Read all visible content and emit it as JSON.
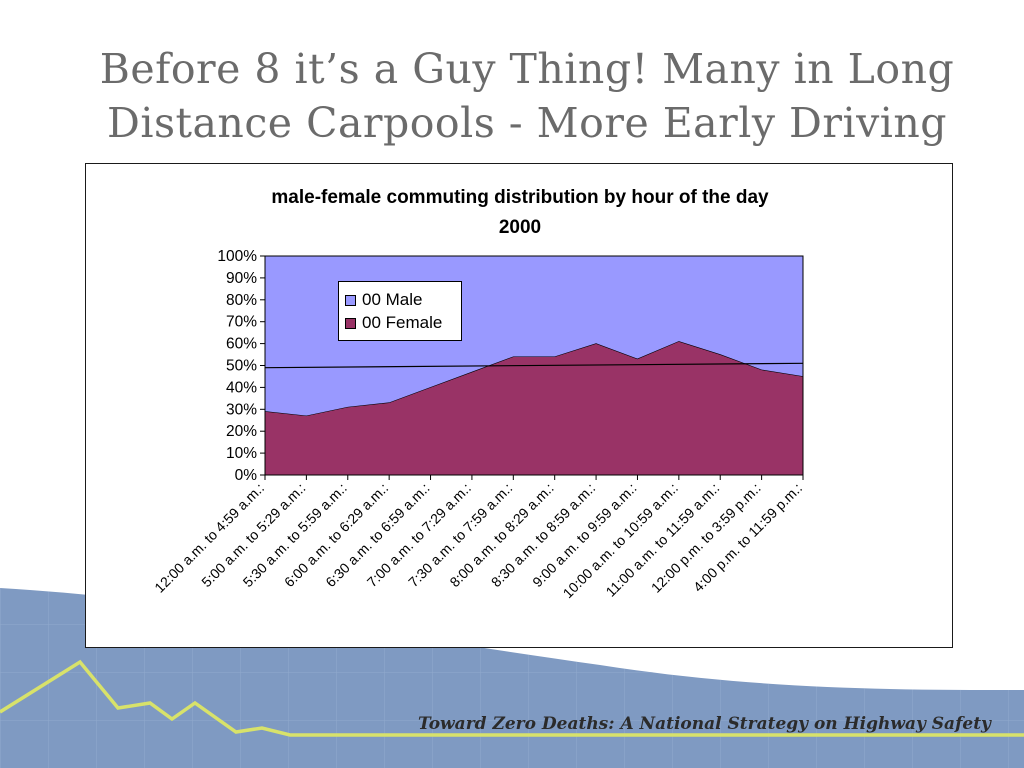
{
  "slide": {
    "title_line1": "Before 8 it’s a Guy Thing! Many in Long",
    "title_line2": "Distance Carpools - More Early Driving",
    "footer_tagline": "Toward Zero Deaths: A National Strategy on Highway Safety"
  },
  "colors": {
    "male": "#9999ff",
    "female": "#993366",
    "title_text": "#6b6b6b",
    "background_band": "#7f9ac2",
    "mountain_line": "#d8e26a"
  },
  "chart_data": {
    "type": "area",
    "stacked": true,
    "percent": true,
    "title_line1": "male-female commuting distribution by hour of the day",
    "title_line2": "2000",
    "categories": [
      "12:00 a.m. to 4:59 a.m.:",
      "5:00 a.m. to 5:29 a.m.:",
      "5:30 a.m. to 5:59 a.m.:",
      "6:00 a.m. to 6:29 a.m.:",
      "6:30 a.m. to 6:59 a.m.:",
      "7:00 a.m. to 7:29 a.m.:",
      "7:30 a.m. to 7:59 a.m.:",
      "8:00 a.m. to 8:29 a.m.:",
      "8:30 a.m. to 8:59 a.m.:",
      "9:00 a.m. to 9:59 a.m.:",
      "10:00 a.m. to 10:59 a.m.:",
      "11:00 a.m. to 11:59 a.m.:",
      "12:00 p.m. to 3:59 p.m.:",
      "4:00 p.m. to 11:59 p.m.:"
    ],
    "series": [
      {
        "name": "00 Female",
        "values": [
          29,
          27,
          31,
          33,
          40,
          47,
          54,
          54,
          60,
          53,
          61,
          55,
          48,
          45
        ]
      },
      {
        "name": "00 Male",
        "values": [
          71,
          73,
          69,
          67,
          60,
          53,
          46,
          46,
          40,
          47,
          39,
          45,
          52,
          55
        ]
      }
    ],
    "reference_line": {
      "start": 49,
      "end": 51
    },
    "y_ticks": [
      "0%",
      "10%",
      "20%",
      "30%",
      "40%",
      "50%",
      "60%",
      "70%",
      "80%",
      "90%",
      "100%"
    ],
    "ylim": [
      0,
      100
    ],
    "legend_position": "top-left inside plot",
    "legend": [
      "00 Male",
      "00 Female"
    ]
  }
}
